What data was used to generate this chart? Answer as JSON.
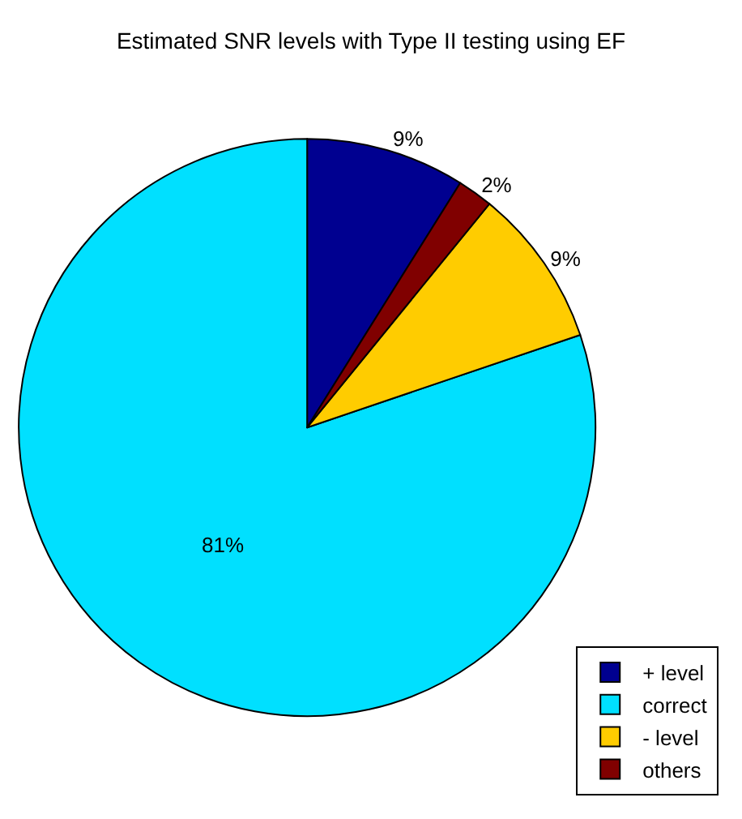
{
  "chart_data": {
    "type": "pie",
    "title": "Estimated SNR levels with Type II testing using EF",
    "categories": [
      "+ level",
      "correct",
      "- level",
      "others"
    ],
    "values": [
      9,
      81,
      9,
      2
    ],
    "colors": [
      "#000090",
      "#00e0ff",
      "#ffcc00",
      "#800000"
    ],
    "value_labels": [
      "9%",
      "81%",
      "9%",
      "2%"
    ],
    "legend": "bottom right"
  }
}
